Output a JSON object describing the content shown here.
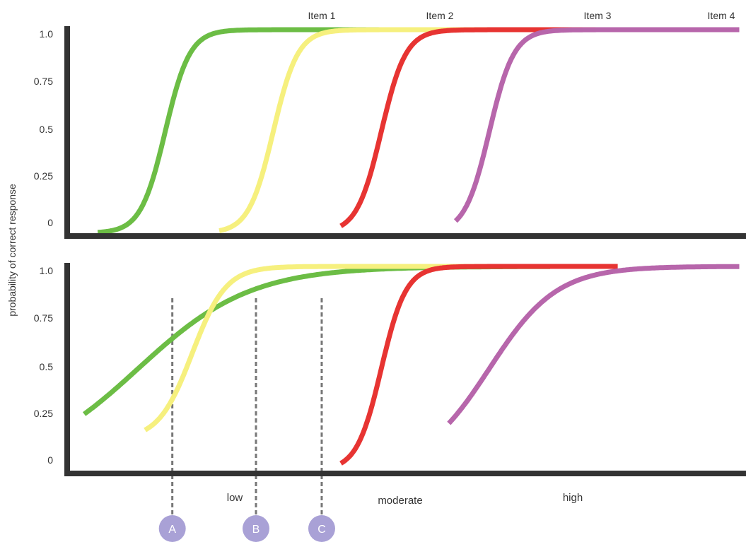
{
  "chart_data": [
    {
      "type": "line",
      "panel": "top",
      "xlabel": "",
      "ylabel": "probability of correct response",
      "ylim": [
        0,
        1
      ],
      "y_ticks": [
        "1.0",
        "0.75",
        "0.5",
        "0.25",
        "0"
      ],
      "grid": false,
      "legend": "labels above curve ends",
      "series": [
        {
          "name": "Item 1",
          "color": "#6cbd45",
          "b": 0.14,
          "a": 55,
          "y_min": 0
        },
        {
          "name": "Item 2",
          "color": "#f6f07e",
          "b": 0.3,
          "a": 55,
          "y_min": 0
        },
        {
          "name": "Item 3",
          "color": "#e73432",
          "b": 0.46,
          "a": 55,
          "y_min": 0
        },
        {
          "name": "Item 4",
          "color": "#b766ab",
          "b": 0.62,
          "a": 55,
          "y_min": 0
        }
      ]
    },
    {
      "type": "line",
      "panel": "bottom",
      "xlabel": "",
      "ylabel": "probability of correct response",
      "ylim": [
        0,
        1
      ],
      "y_ticks": [
        "1.0",
        "0.75",
        "0.5",
        "0.25",
        "0"
      ],
      "grid": false,
      "x_band_labels": [
        "low",
        "moderate",
        "high"
      ],
      "reference_lines": [
        {
          "label": "A",
          "x": -0.02
        },
        {
          "label": "B",
          "x": 0.12
        },
        {
          "label": "C",
          "x": 0.23
        }
      ],
      "series": [
        {
          "name": "Item 1",
          "color": "#6cbd45",
          "b": 0.1,
          "a": 12,
          "y_min": 0
        },
        {
          "name": "Item 2",
          "color": "#f6f07e",
          "b": 0.18,
          "a": 40,
          "y_min": 0.15
        },
        {
          "name": "Item 3",
          "color": "#e73432",
          "b": 0.46,
          "a": 55,
          "y_min": 0
        },
        {
          "name": "Item 4",
          "color": "#b766ab",
          "b": 0.62,
          "a": 20,
          "y_min": 0
        }
      ]
    }
  ],
  "labels": {
    "ylabel": "probability of correct response",
    "item1": "Item 1",
    "item2": "Item 2",
    "item3": "Item 3",
    "item4": "Item 4",
    "band_low": "low",
    "band_moderate": "moderate",
    "band_high": "high",
    "marker_a": "A",
    "marker_b": "B",
    "marker_c": "C",
    "tick_10": "1.0",
    "tick_075": "0.75",
    "tick_05": "0.5",
    "tick_025": "0.25",
    "tick_0": "0"
  },
  "colors": {
    "axis": "#333333",
    "reference_line": "#777777",
    "marker": "#a9a1d6",
    "item1": "#6cbd45",
    "item2": "#f6f07e",
    "item3": "#e73432",
    "item4": "#b766ab"
  }
}
